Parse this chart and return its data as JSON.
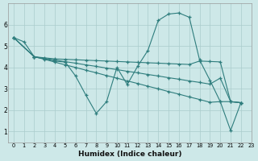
{
  "background_color": "#cde8e8",
  "grid_color": "#aacccc",
  "line_color": "#2e7d7d",
  "xlabel": "Humidex (Indice chaleur)",
  "xlim": [
    -0.5,
    23
  ],
  "ylim": [
    0.5,
    7.0
  ],
  "yticks": [
    1,
    2,
    3,
    4,
    5,
    6
  ],
  "xtick_labels": [
    "0",
    "1",
    "2",
    "3",
    "4",
    "5",
    "6",
    "7",
    "8",
    "9",
    "10",
    "11",
    "12",
    "13",
    "14",
    "15",
    "16",
    "17",
    "18",
    "19",
    "20",
    "21",
    "22",
    "23"
  ],
  "xtick_vals": [
    0,
    1,
    2,
    3,
    4,
    5,
    6,
    7,
    8,
    9,
    10,
    11,
    12,
    13,
    14,
    15,
    16,
    17,
    18,
    19,
    20,
    21,
    22,
    23
  ],
  "s1_x": [
    0,
    1,
    2,
    3,
    4,
    5,
    6,
    7,
    8,
    9,
    10,
    11,
    12,
    13,
    14,
    15,
    16,
    17,
    18,
    19,
    20,
    21,
    22
  ],
  "s1_y": [
    5.4,
    5.2,
    4.5,
    4.4,
    4.3,
    4.25,
    3.6,
    2.7,
    1.85,
    2.4,
    4.0,
    3.2,
    4.05,
    4.8,
    6.2,
    6.5,
    6.55,
    6.35,
    4.35,
    3.4,
    2.4,
    1.05,
    2.35
  ],
  "s2_x": [
    0,
    2,
    3,
    4,
    5,
    6,
    7,
    8,
    9,
    10,
    11,
    12,
    13,
    14,
    15,
    16,
    17,
    18,
    19,
    20,
    21,
    22
  ],
  "s2_y": [
    5.4,
    4.5,
    4.45,
    4.4,
    4.38,
    4.36,
    4.34,
    4.32,
    4.3,
    4.28,
    4.26,
    4.24,
    4.22,
    4.2,
    4.18,
    4.16,
    4.14,
    4.3,
    4.28,
    4.26,
    2.4,
    2.35
  ],
  "s3_x": [
    0,
    2,
    3,
    4,
    5,
    6,
    7,
    8,
    9,
    10,
    11,
    12,
    13,
    14,
    15,
    16,
    17,
    18,
    19,
    20,
    21,
    22
  ],
  "s3_y": [
    5.4,
    4.5,
    4.42,
    4.35,
    4.27,
    4.2,
    4.12,
    4.05,
    3.97,
    3.9,
    3.82,
    3.75,
    3.67,
    3.6,
    3.52,
    3.45,
    3.37,
    3.3,
    3.22,
    3.5,
    2.4,
    2.35
  ],
  "s4_x": [
    0,
    2,
    3,
    4,
    5,
    6,
    7,
    8,
    9,
    10,
    11,
    12,
    13,
    14,
    15,
    16,
    17,
    18,
    19,
    20,
    21,
    22
  ],
  "s4_y": [
    5.4,
    4.5,
    4.38,
    4.25,
    4.12,
    4.0,
    3.87,
    3.75,
    3.62,
    3.5,
    3.37,
    3.25,
    3.12,
    3.0,
    2.87,
    2.75,
    2.62,
    2.5,
    2.37,
    2.4,
    2.4,
    2.35
  ]
}
